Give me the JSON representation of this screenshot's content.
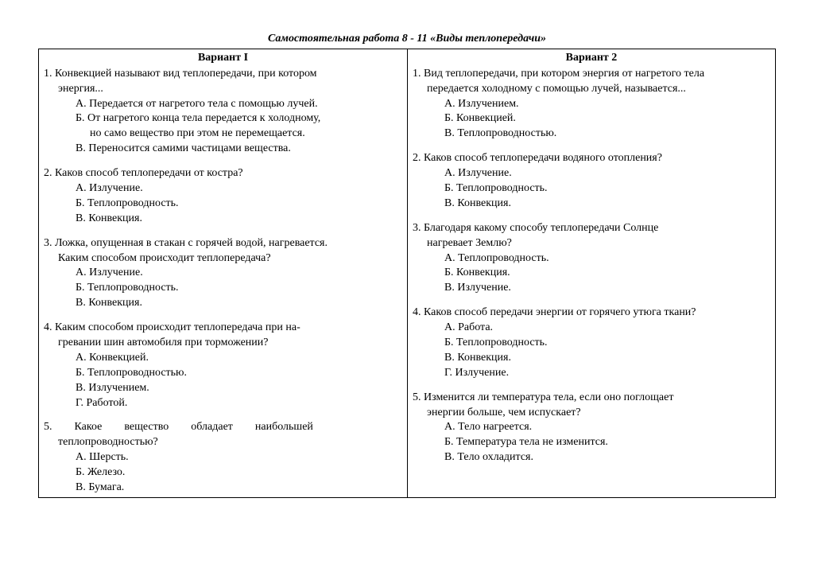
{
  "title": "Самостоятельная работа 8 - 11 «Виды теплопередачи»",
  "v1": {
    "head": "Вариант I",
    "q1": {
      "l1": "1. Конвекцией называют вид теплопередачи, при котором",
      "l2": "энергия...",
      "a": "А. Передается от нагретого тела с помощью лучей.",
      "b1": "Б. От нагретого конца тела передается к холодному,",
      "b2": "но само вещество при этом не перемещается.",
      "c": "В. Переносится самими частицами вещества."
    },
    "q2": {
      "l1": "2. Каков способ теплопередачи от костра?",
      "a": "А. Излучение.",
      "b": "Б. Теплопроводность.",
      "c": "В. Конвекция."
    },
    "q3": {
      "l1": "3. Ложка, опущенная в стакан с горячей водой, нагревается.",
      "l2": "Каким способом происходит теплопередача?",
      "a": "А. Излучение.",
      "b": "Б. Теплопроводность.",
      "c": "В. Конвекция."
    },
    "q4": {
      "l1": "4. Каким способом происходит теплопередача при на-",
      "l2": "гревании шин автомобиля при торможении?",
      "a": "А. Конвекцией.",
      "b": "Б. Теплопроводностью.",
      "c": "В. Излучением.",
      "d": "Г. Работой."
    },
    "q5": {
      "l1": "5.  Какое  вещество  обладает  наибольшей",
      "l2": "теплопроводностью?",
      "a": "А. Шерсть.",
      "b": "Б. Железо.",
      "c": "В. Бумага."
    }
  },
  "v2": {
    "head": "Вариант  2",
    "q1": {
      "l1": "1. Вид теплопередачи, при котором энергия от нагретого тела",
      "l2": "передается холодному с помощью лучей, называется...",
      "a": "А. Излучением.",
      "b": "Б. Конвекцией.",
      "c": "В. Теплопроводностью."
    },
    "q2": {
      "l1": "2. Каков способ теплопередачи водяного отопления?",
      "a": "А. Излучение.",
      "b": "Б. Теплопроводность.",
      "c": "В. Конвекция."
    },
    "q3": {
      "l1": "3. Благодаря какому способу теплопередачи Солнце",
      "l2": "нагревает Землю?",
      "a": "А. Теплопроводность.",
      "b": "Б. Конвекция.",
      "c": "В. Излучение."
    },
    "q4": {
      "l1": "4. Каков способ передачи энергии от горячего утюга ткани?",
      "a": "А. Работа.",
      "b": "Б. Теплопроводность.",
      "c": "В. Конвекция.",
      "d": "Г. Излучение."
    },
    "q5": {
      "l1": "5. Изменится ли температура тела, если оно поглощает",
      "l2": "энергии больше, чем испускает?",
      "a": "А. Тело нагреется.",
      "b": "Б. Температура тела не изменится.",
      "c": "В. Тело охладится."
    }
  }
}
